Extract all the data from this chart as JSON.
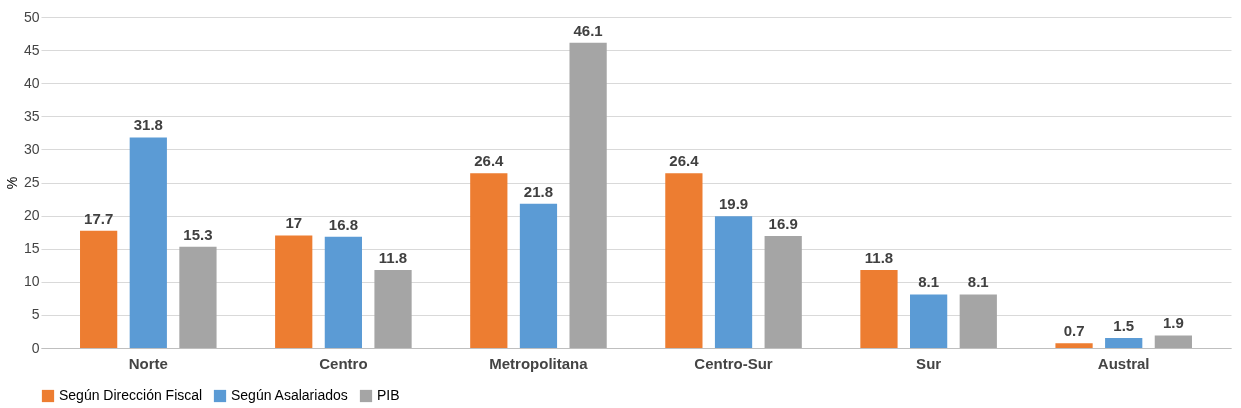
{
  "chart_data": {
    "type": "bar",
    "ylabel": "%",
    "categories": [
      "Norte",
      "Centro",
      "Metropolitana",
      "Centro-Sur",
      "Sur",
      "Austral"
    ],
    "series": [
      {
        "name": "Según Dirección Fiscal",
        "color": "#ed7d31",
        "values": [
          17.7,
          17,
          26.4,
          26.4,
          11.8,
          0.7
        ]
      },
      {
        "name": "Según Asalariados",
        "color": "#5b9bd5",
        "values": [
          31.8,
          16.8,
          21.8,
          19.9,
          8.1,
          1.5
        ]
      },
      {
        "name": "PIB",
        "color": "#a5a5a5",
        "values": [
          15.3,
          11.8,
          46.1,
          16.9,
          8.1,
          1.9
        ]
      }
    ],
    "ylim": [
      0,
      50
    ],
    "yticks": [
      0,
      5,
      10,
      15,
      20,
      25,
      30,
      35,
      40,
      45,
      50
    ],
    "grid": "y",
    "legend": "bottom",
    "data_labels": true
  }
}
